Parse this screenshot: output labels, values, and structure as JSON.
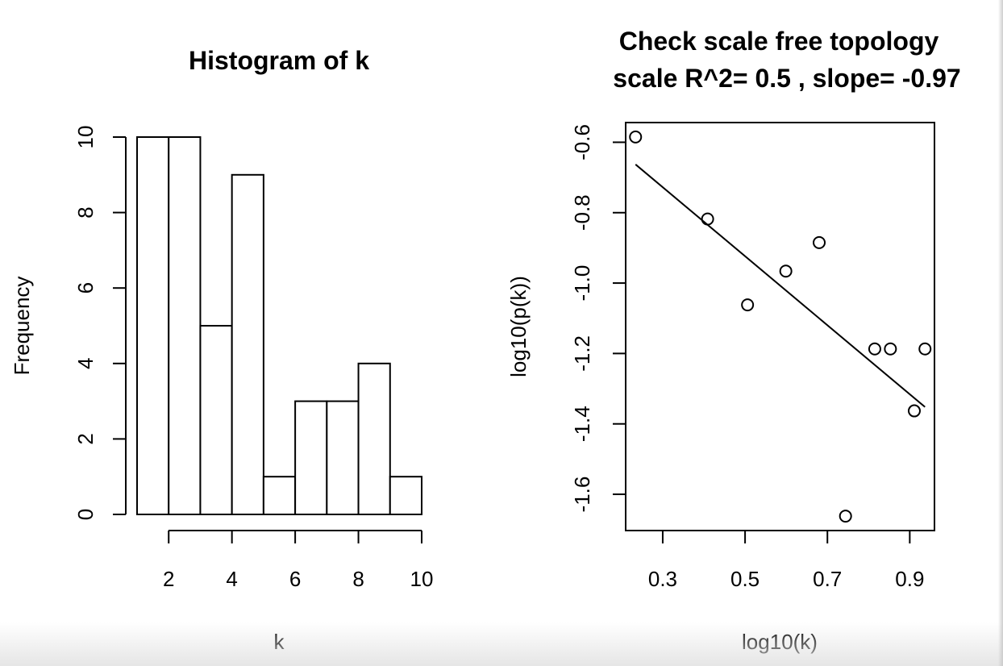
{
  "chart_data": [
    {
      "type": "bar",
      "title": "Histogram of k",
      "xlabel": "k",
      "ylabel": "Frequency",
      "bins": [
        {
          "from": 1,
          "to": 2,
          "count": 10
        },
        {
          "from": 2,
          "to": 3,
          "count": 10
        },
        {
          "from": 3,
          "to": 4,
          "count": 5
        },
        {
          "from": 4,
          "to": 5,
          "count": 9
        },
        {
          "from": 5,
          "to": 6,
          "count": 1
        },
        {
          "from": 6,
          "to": 7,
          "count": 3
        },
        {
          "from": 7,
          "to": 8,
          "count": 3
        },
        {
          "from": 8,
          "to": 9,
          "count": 4
        },
        {
          "from": 9,
          "to": 10,
          "count": 1
        }
      ],
      "x_ticks": [
        2,
        4,
        6,
        8,
        10
      ],
      "x_tick_labels": [
        "2",
        "4",
        "6",
        "8",
        "10"
      ],
      "y_ticks": [
        0,
        2,
        4,
        6,
        8,
        10
      ],
      "y_tick_labels": [
        "0",
        "2",
        "4",
        "6",
        "8",
        "10"
      ],
      "xlim": [
        1,
        10
      ],
      "ylim": [
        0,
        10
      ],
      "grid": false
    },
    {
      "type": "scatter",
      "title_line1": "Check scale free topology",
      "title_line2": "scale R^2= 0.5 , slope= -0.97",
      "xlabel": "log10(k)",
      "ylabel": "log10(p(k))",
      "points": [
        {
          "x": 0.234,
          "y": -0.585
        },
        {
          "x": 0.409,
          "y": -0.818
        },
        {
          "x": 0.506,
          "y": -1.062
        },
        {
          "x": 0.599,
          "y": -0.966
        },
        {
          "x": 0.68,
          "y": -0.885
        },
        {
          "x": 0.744,
          "y": -1.662
        },
        {
          "x": 0.815,
          "y": -1.187
        },
        {
          "x": 0.853,
          "y": -1.187
        },
        {
          "x": 0.911,
          "y": -1.363
        },
        {
          "x": 0.937,
          "y": -1.187
        }
      ],
      "fit_line": {
        "x": [
          0.234,
          0.937
        ],
        "y": [
          -0.663,
          -1.352
        ]
      },
      "x_ticks": [
        0.3,
        0.5,
        0.7,
        0.9
      ],
      "x_tick_labels": [
        "0.3",
        "0.5",
        "0.7",
        "0.9"
      ],
      "y_ticks": [
        -0.6,
        -0.8,
        -1.0,
        -1.2,
        -1.4,
        -1.6
      ],
      "y_tick_labels": [
        "-0.6",
        "-0.8",
        "-1.0",
        "-1.2",
        "-1.4",
        "-1.6"
      ],
      "xlim": [
        0.21,
        0.96
      ],
      "ylim": [
        -1.703,
        -0.544
      ],
      "grid": false,
      "legend": "none"
    }
  ]
}
